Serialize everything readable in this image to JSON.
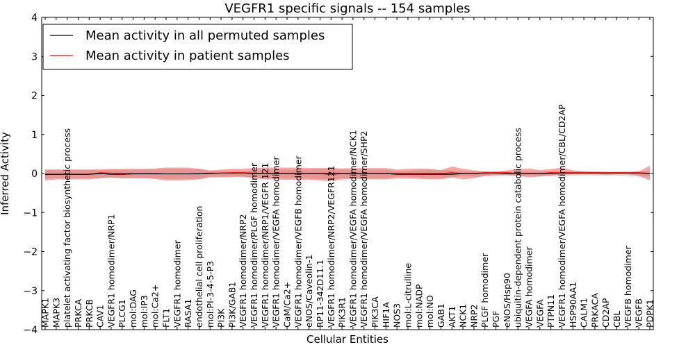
{
  "chart_data": {
    "type": "line",
    "title": "VEGFR1 specific signals -- 154 samples",
    "xlabel": "Cellular Entities",
    "ylabel": "Inferred Activity",
    "ylim": [
      -4,
      4
    ],
    "yticks": [
      -4,
      -3,
      -2,
      -1,
      0,
      1,
      2,
      3,
      4
    ],
    "ytick_labels": [
      "−4",
      "−3",
      "−2",
      "−1",
      "0",
      "1",
      "2",
      "3",
      "4"
    ],
    "legend_location": "top-left",
    "categories": [
      "MAPK1",
      "MAPK3",
      "platelet activating factor biosynthetic process",
      "PRKCA",
      "PRKCB",
      "CAV1",
      "VEGFR1 homodimer/NRP1",
      "PLCG1",
      "mol:DAG",
      "mol:IP3",
      "mol:Ca2+",
      "FLT1",
      "VEGFR1 homodimer",
      "RASA1",
      "endothelial cell proliferation",
      "mol:PI-3-4-5-P3",
      "PI3K",
      "PI3K/GAB1",
      "VEGFR1 homodimer/NRP2",
      "VEGFR1 homodimer/PLGF homodimer",
      "VEGFR1 homodimer/NRP1/VEGFR 121",
      "VEGFR1 homodimer/VEGFA homodimer",
      "CaM/Ca2+",
      "VEGFR1 homodimer/VEGFB homodimer",
      "eNOS/Caveolin-1",
      "RP11-342D11.1",
      "VEGFR1 homodimer/NRP2/VEGFR121",
      "PIK3R1",
      "VEGFR1 homodimer/VEGFA homodimer/NCK1",
      "VEGFR1 homodimer/VEGFA homodimer/SHP2",
      "PIK3CA",
      "HIF1A",
      "NOS3",
      "mol:L-citrulline",
      "mol:NADP",
      "mol:NO",
      "GAB1",
      "AKT1",
      "NCK1",
      "NRP2",
      "PLGF homodimer",
      "PGF",
      "eNOS/Hsp90",
      "ubiquitin-dependent protein catabolic process",
      "VEGFA homodimer",
      "VEGFA",
      "PTPN11",
      "VEGFR1 homodimer/VEGFA homodimer/CBL/CD2AP",
      "HSP90AA1",
      "CALM1",
      "PRKACA",
      "CD2AP",
      "CBL",
      "VEGFB homodimer",
      "VEGFB",
      "PDPK1"
    ],
    "series": [
      {
        "name": "Mean activity in all permuted samples",
        "color": "#000000",
        "values": [
          -0.02,
          -0.02,
          -0.02,
          -0.02,
          -0.02,
          0.0,
          -0.02,
          -0.02,
          -0.01,
          -0.01,
          -0.01,
          -0.01,
          -0.01,
          -0.01,
          -0.01,
          0.0,
          0.01,
          0.01,
          0.01,
          0.0,
          0.0,
          0.0,
          0.0,
          0.0,
          0.0,
          0.0,
          0.0,
          0.0,
          0.0,
          0.0,
          0.0,
          0.0,
          -0.02,
          -0.02,
          -0.02,
          -0.02,
          -0.02,
          -0.02,
          0.0,
          0.0,
          0.01,
          0.01,
          0.0,
          0.0,
          0.0,
          0.0,
          0.0,
          0.01,
          0.01,
          0.01,
          0.01,
          0.01,
          0.01,
          0.01,
          0.01,
          0.0
        ],
        "band_low": [
          -0.12,
          -0.12,
          -0.12,
          -0.12,
          -0.12,
          -0.12,
          -0.12,
          -0.12,
          -0.12,
          -0.12,
          -0.12,
          -0.14,
          -0.14,
          -0.14,
          -0.14,
          -0.08,
          -0.08,
          -0.08,
          -0.08,
          -0.1,
          -0.12,
          -0.12,
          -0.12,
          -0.12,
          -0.12,
          -0.14,
          -0.14,
          -0.12,
          -0.12,
          -0.12,
          -0.12,
          -0.12,
          -0.08,
          -0.08,
          -0.1,
          -0.12,
          -0.12,
          -0.1,
          -0.06,
          -0.08,
          -0.08,
          -0.08,
          -0.06,
          -0.06,
          -0.06,
          -0.06,
          -0.08,
          -0.08,
          -0.06,
          -0.06,
          -0.06,
          -0.06,
          -0.06,
          -0.08,
          -0.08,
          -0.08
        ],
        "band_high": [
          0.1,
          0.1,
          0.1,
          0.1,
          0.1,
          0.1,
          0.1,
          0.1,
          0.1,
          0.1,
          0.1,
          0.12,
          0.12,
          0.12,
          0.12,
          0.06,
          0.06,
          0.06,
          0.06,
          0.08,
          0.1,
          0.1,
          0.1,
          0.1,
          0.1,
          0.12,
          0.12,
          0.1,
          0.1,
          0.1,
          0.1,
          0.1,
          0.06,
          0.06,
          0.08,
          0.1,
          0.1,
          0.08,
          0.05,
          0.06,
          0.06,
          0.06,
          0.05,
          0.05,
          0.05,
          0.05,
          0.06,
          0.06,
          0.05,
          0.05,
          0.05,
          0.05,
          0.05,
          0.06,
          0.06,
          0.06
        ]
      },
      {
        "name": "Mean activity in patient samples",
        "color": "#ff0000",
        "values": [
          -0.03,
          -0.02,
          -0.02,
          -0.02,
          -0.02,
          0.02,
          0.01,
          0.0,
          0.0,
          0.0,
          0.0,
          -0.01,
          -0.01,
          -0.01,
          0.0,
          0.01,
          0.01,
          0.02,
          0.02,
          0.01,
          0.0,
          0.0,
          0.0,
          0.0,
          0.0,
          0.0,
          -0.03,
          0.0,
          0.0,
          0.0,
          0.0,
          0.0,
          0.0,
          0.0,
          0.0,
          0.0,
          0.0,
          0.02,
          0.0,
          0.0,
          0.02,
          0.02,
          0.02,
          0.0,
          0.0,
          0.0,
          0.02,
          0.02,
          0.02,
          0.02,
          0.02,
          0.02,
          0.02,
          0.02,
          0.02,
          0.0
        ],
        "band_low": [
          -0.18,
          -0.15,
          -0.15,
          -0.15,
          -0.15,
          -0.12,
          -0.1,
          -0.12,
          -0.12,
          -0.12,
          -0.14,
          -0.18,
          -0.18,
          -0.17,
          -0.15,
          -0.1,
          -0.1,
          -0.09,
          -0.09,
          -0.13,
          -0.15,
          -0.15,
          -0.16,
          -0.16,
          -0.16,
          -0.18,
          -0.2,
          -0.15,
          -0.14,
          -0.15,
          -0.15,
          -0.15,
          -0.13,
          -0.13,
          -0.14,
          -0.15,
          -0.15,
          -0.1,
          -0.15,
          -0.12,
          -0.06,
          -0.04,
          -0.04,
          -0.06,
          -0.1,
          -0.08,
          -0.05,
          -0.03,
          -0.02,
          -0.02,
          -0.02,
          -0.03,
          -0.02,
          -0.02,
          -0.06,
          -0.18
        ],
        "band_high": [
          0.1,
          0.1,
          0.1,
          0.1,
          0.1,
          0.1,
          0.11,
          0.12,
          0.12,
          0.12,
          0.13,
          0.15,
          0.15,
          0.15,
          0.12,
          0.08,
          0.1,
          0.12,
          0.12,
          0.14,
          0.15,
          0.15,
          0.15,
          0.15,
          0.14,
          0.14,
          0.14,
          0.13,
          0.14,
          0.14,
          0.14,
          0.14,
          0.1,
          0.12,
          0.13,
          0.12,
          0.08,
          0.18,
          0.12,
          0.08,
          0.05,
          0.05,
          0.08,
          0.12,
          0.13,
          0.09,
          0.11,
          0.15,
          0.08,
          0.06,
          0.05,
          0.04,
          0.04,
          0.03,
          0.05,
          0.2
        ]
      }
    ]
  }
}
